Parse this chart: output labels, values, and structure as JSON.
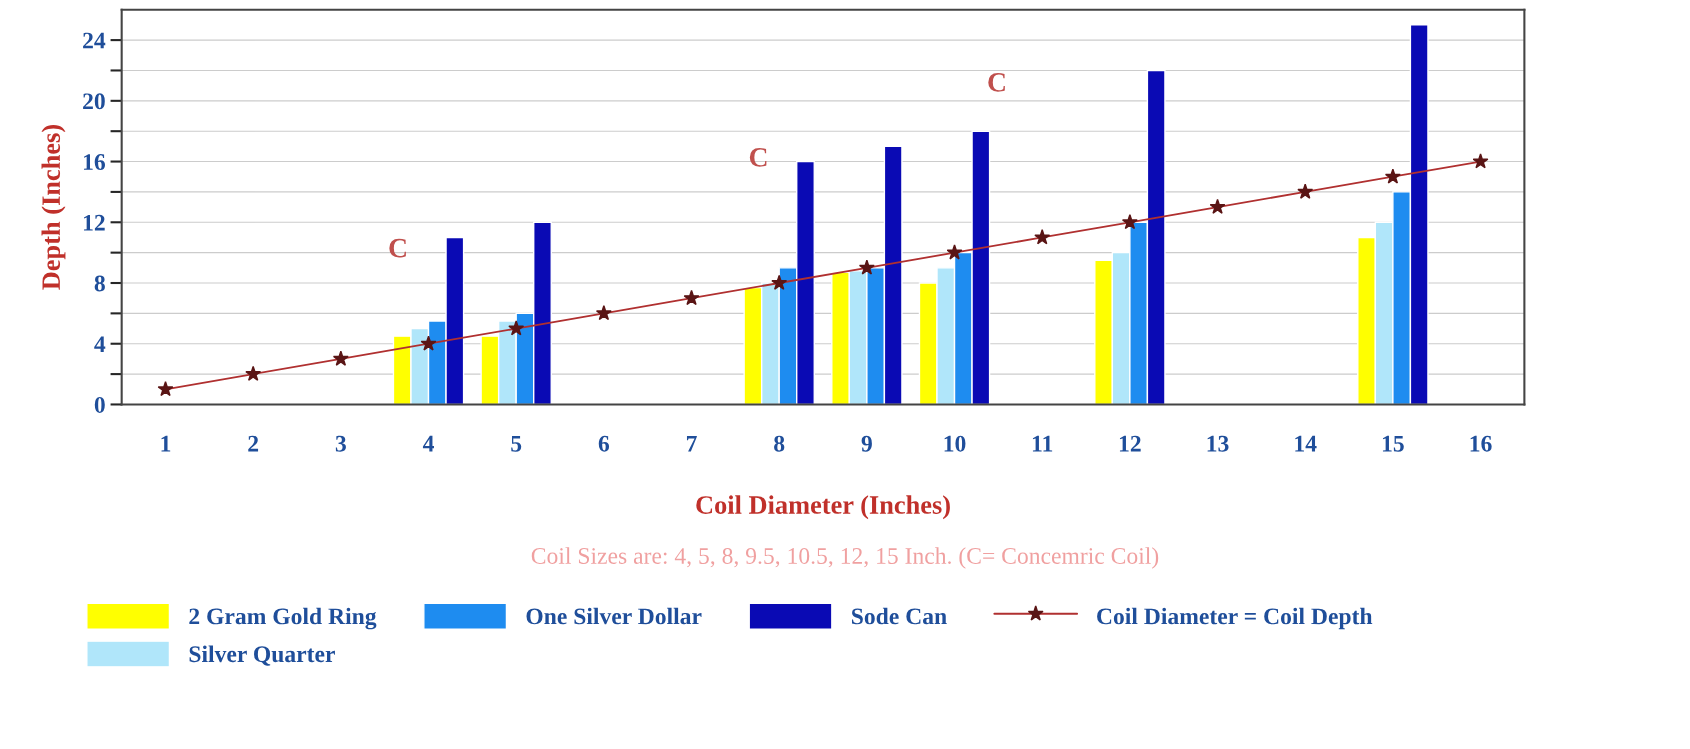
{
  "chart_data": {
    "type": "bar",
    "xlabel": "Coil Diameter (Inches)",
    "ylabel": "Depth (Inches)",
    "categories": [
      "1",
      "2",
      "3",
      "4",
      "5",
      "6",
      "7",
      "8",
      "9",
      "10",
      "11",
      "12",
      "13",
      "14",
      "15",
      "16"
    ],
    "series": [
      {
        "name": "2 Gram Gold Ring",
        "color": "#ffff00",
        "values": [
          null,
          null,
          null,
          4.5,
          4.5,
          null,
          null,
          7.7,
          8.7,
          8,
          null,
          9.5,
          null,
          null,
          11,
          null
        ]
      },
      {
        "name": "Silver Quarter",
        "color": "#b0e6fa",
        "values": [
          null,
          null,
          null,
          5,
          5.5,
          null,
          null,
          8,
          8.8,
          9,
          null,
          10,
          null,
          null,
          12,
          null
        ]
      },
      {
        "name": "One Silver Dollar",
        "color": "#1e8cf0",
        "values": [
          null,
          null,
          null,
          5.5,
          6,
          null,
          null,
          9,
          9,
          10,
          null,
          12,
          null,
          null,
          14,
          null
        ]
      },
      {
        "name": "Sode Can",
        "color": "#0a0ab4",
        "values": [
          null,
          null,
          null,
          11,
          12,
          null,
          null,
          16,
          17,
          18,
          null,
          22,
          null,
          null,
          25,
          null
        ]
      },
      {
        "name": "Coil Diameter = Coil Depth",
        "type": "line",
        "color": "#b03030",
        "marker": "star",
        "line_style": "solid",
        "values": [
          1,
          2,
          3,
          4,
          5,
          6,
          7,
          8,
          9,
          10,
          11,
          12,
          13,
          14,
          15,
          16
        ]
      }
    ],
    "ylim": [
      0,
      26
    ],
    "yticks": [
      0,
      {
        "value": 2,
        "label": null
      },
      4,
      {
        "value": 6,
        "label": null
      },
      8,
      {
        "value": 10,
        "label": null
      },
      12,
      {
        "value": 14,
        "label": null
      },
      16,
      {
        "value": 18,
        "label": null
      },
      20,
      {
        "value": 22,
        "label": null
      },
      24
    ],
    "grid": "y",
    "legend": "bottom",
    "annotations": [
      "Coil Sizes are: 4, 5, 8, 9.5, 10.5, 12, 15 Inch. (C= Concemric Coil)",
      "C",
      "C",
      "C"
    ]
  }
}
